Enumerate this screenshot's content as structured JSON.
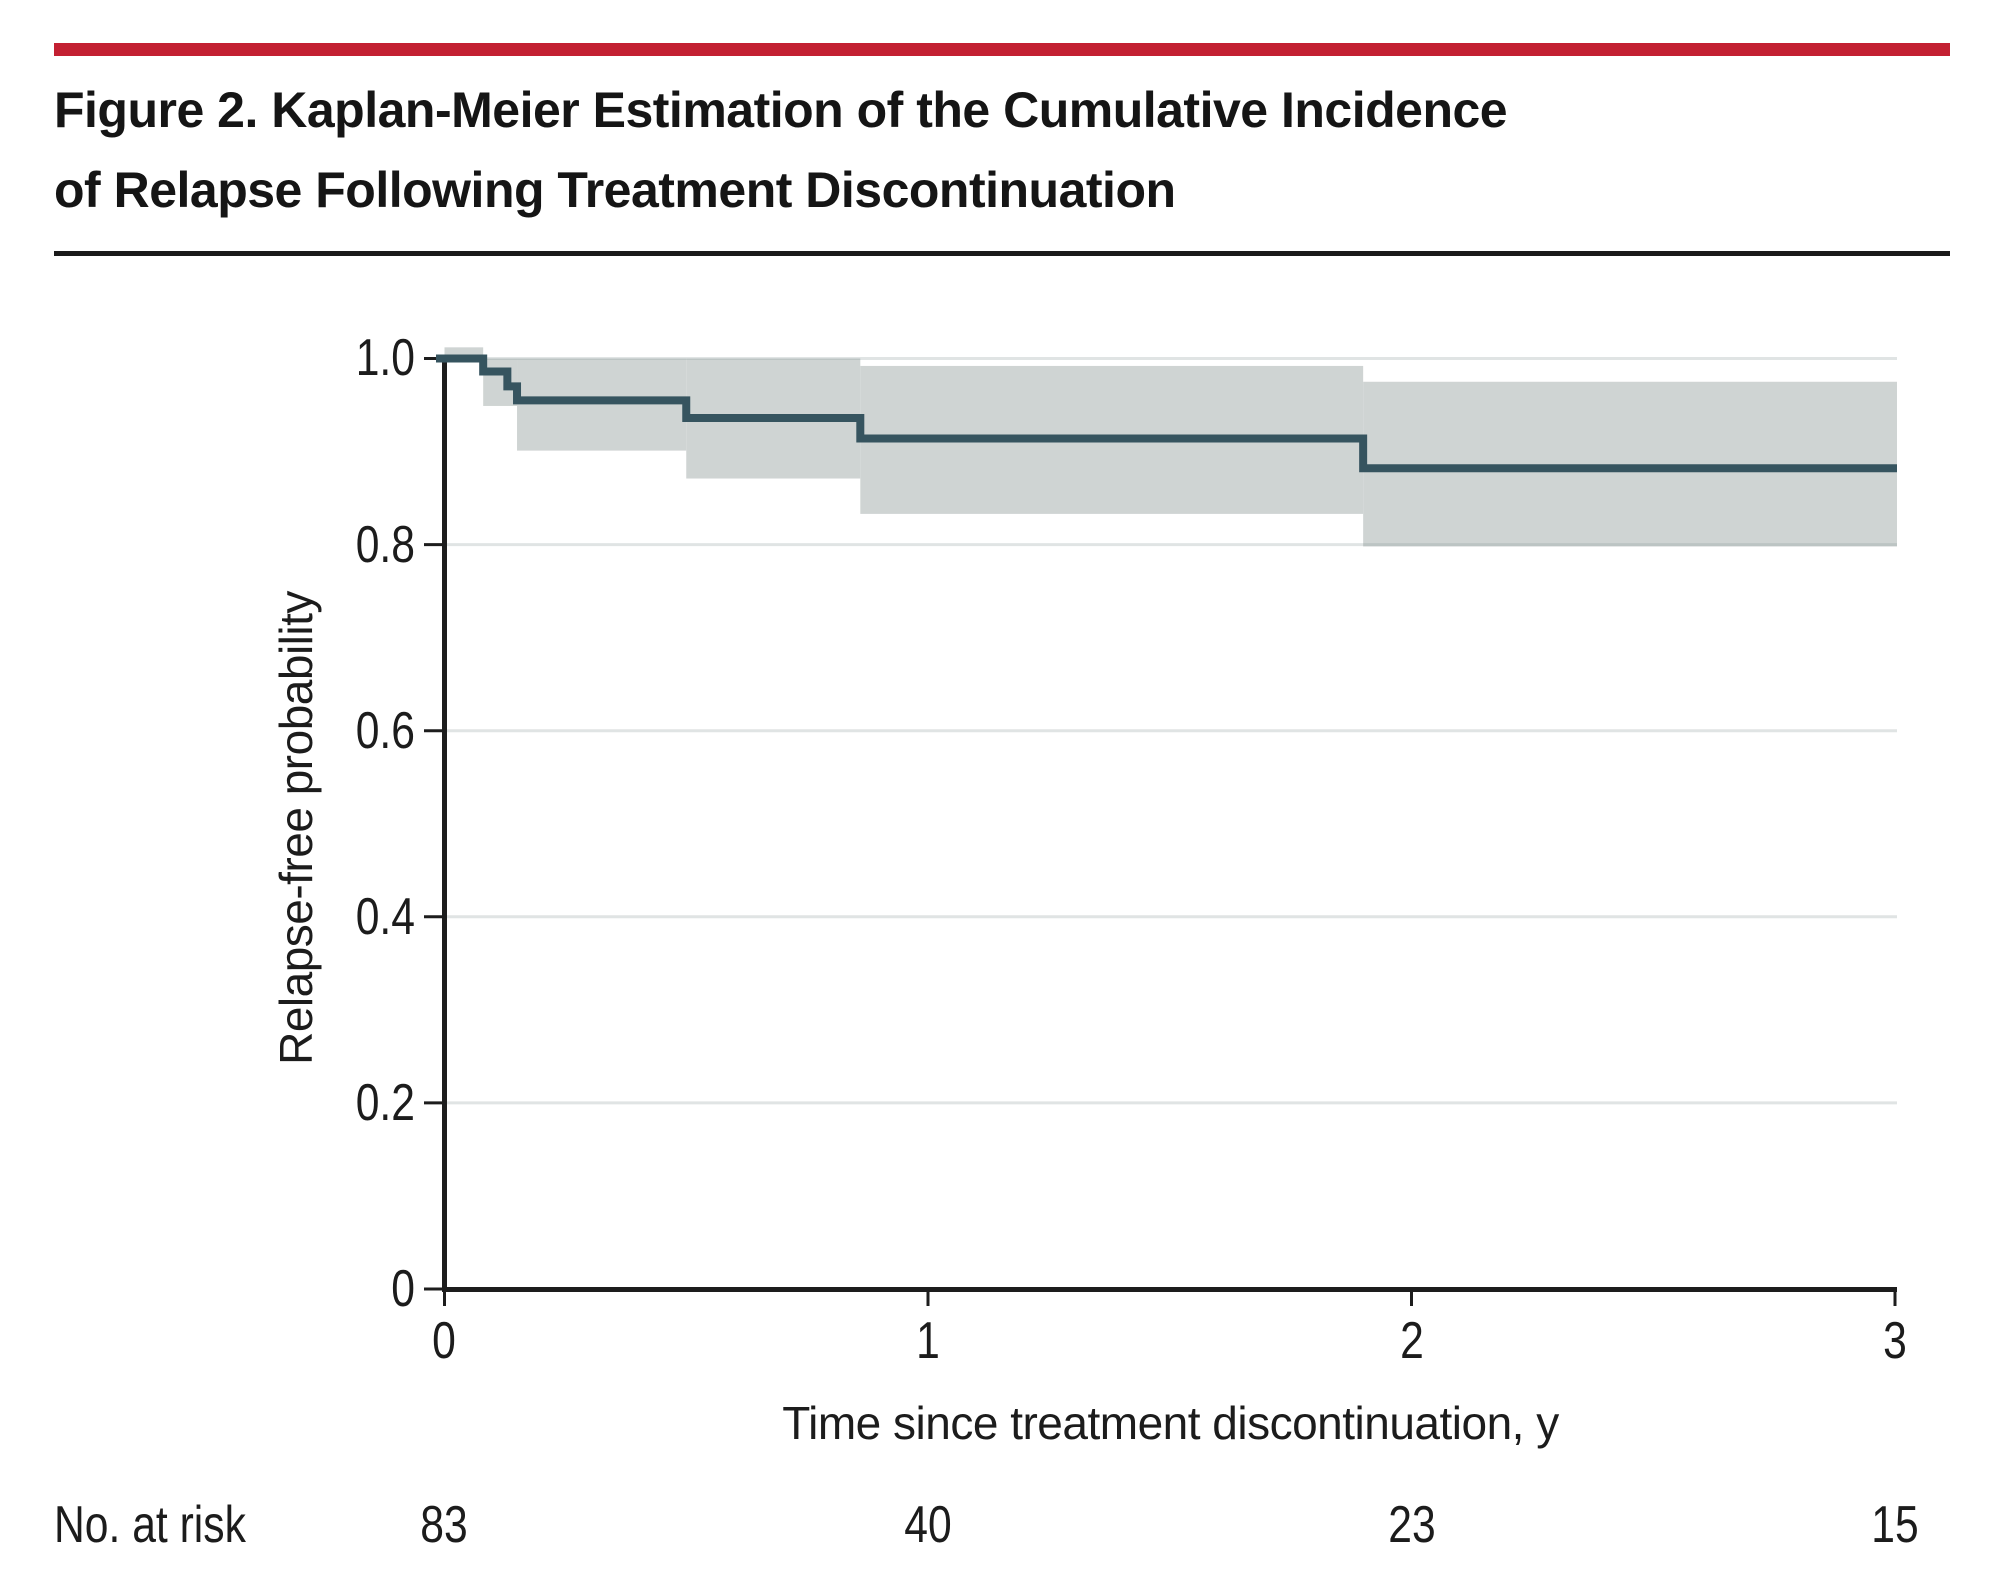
{
  "chart_data": {
    "type": "line",
    "subtype": "kaplan-meier-step-with-confidence-band",
    "title": "Figure 2. Kaplan-Meier Estimation of the Cumulative Incidence of Relapse Following Treatment Discontinuation",
    "title_lines": [
      "Figure 2. Kaplan-Meier Estimation of the Cumulative Incidence",
      "of Relapse Following Treatment Discontinuation"
    ],
    "xlabel": "Time since treatment discontinuation, y",
    "ylabel": "Relapse-free probability",
    "xlim": [
      0,
      3
    ],
    "ylim": [
      0,
      1.0
    ],
    "x_ticks": [
      "0",
      "1",
      "2",
      "3"
    ],
    "y_ticks": [
      "1.0",
      "0.8",
      "0.6",
      "0.4",
      "0.2",
      "0"
    ],
    "grid": "horizontal-gridlines-at-each-0.2",
    "legend": "none",
    "km_curve": {
      "step_times": [
        0,
        0.08,
        0.13,
        0.15,
        0.5,
        0.86,
        1.9
      ],
      "survival": [
        1.0,
        0.986,
        0.97,
        0.955,
        0.936,
        0.914,
        0.882
      ],
      "end_time": 3.0
    },
    "ci_band": {
      "segments": [
        {
          "t_start": 0.0,
          "t_end": 0.08,
          "lower": 1.0,
          "upper": 1.012
        },
        {
          "t_start": 0.08,
          "t_end": 0.15,
          "lower": 0.949,
          "upper": 1.0
        },
        {
          "t_start": 0.15,
          "t_end": 0.5,
          "lower": 0.901,
          "upper": 1.0
        },
        {
          "t_start": 0.5,
          "t_end": 0.86,
          "lower": 0.871,
          "upper": 1.0
        },
        {
          "t_start": 0.86,
          "t_end": 1.9,
          "lower": 0.833,
          "upper": 0.992
        },
        {
          "t_start": 1.9,
          "t_end": 3.0,
          "lower": 0.798,
          "upper": 0.975
        }
      ]
    },
    "risk_table": {
      "label": "No. at risk",
      "times": [
        0,
        1,
        2,
        3
      ],
      "counts": [
        "83",
        "40",
        "23",
        "15"
      ]
    },
    "colors": {
      "curve": "#36545f",
      "ci_band": "#cfd4d3",
      "accent_bar": "#c32032",
      "axis": "#1d1d1d",
      "gridline": "#e2e6e6",
      "gridline_rgba": "rgba(134,150,150,0.26)",
      "background": "#ffffff"
    }
  }
}
